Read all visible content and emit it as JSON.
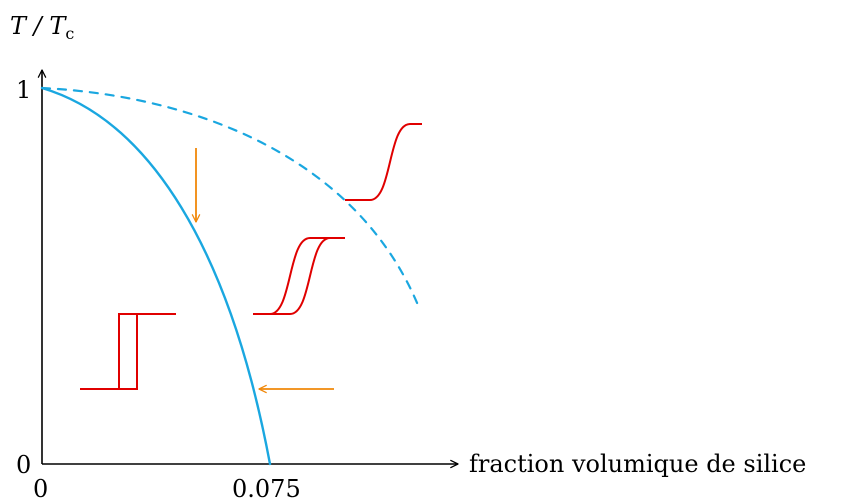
{
  "axes": {
    "y_label_main": "T / T",
    "y_label_sub": "c",
    "x_label": "fraction volumique de silice",
    "origin_x_tick": "0",
    "origin_y_tick": "0",
    "y_tick_1": "1",
    "x_tick_critical": "0.075"
  },
  "colors": {
    "axis": "#000000",
    "boundary_curve": "#1aa7e0",
    "transition_glyph": "#e00000",
    "arrow": "#f0880a"
  },
  "icons": {
    "vertical_arrow": "arrow-down-icon",
    "horizontal_arrow": "arrow-left-icon",
    "discontinuous_transition": "hysteresis-step-icon",
    "hysteretic_smooth_transition": "hysteresis-sigmoid-icon",
    "continuous_transition": "sigmoid-icon"
  }
}
